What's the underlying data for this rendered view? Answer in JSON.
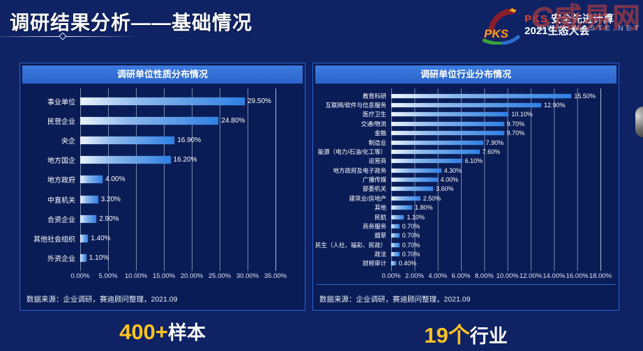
{
  "header": {
    "title": "调研结果分析——基础情况",
    "logo": {
      "brand": "PKS",
      "line1": "安全先进计算",
      "line2": "2021生态大会"
    },
    "watermark": {
      "mark": "C",
      "text": "威易网",
      "subtext": "WWW.WESTE.NET"
    }
  },
  "chart_data": [
    {
      "type": "bar",
      "orientation": "horizontal",
      "title": "调研单位性质分布情况",
      "categories": [
        "事业单位",
        "民营企业",
        "央企",
        "地方国企",
        "地方政府",
        "中直机关",
        "合资企业",
        "其他社会组织",
        "外资企业"
      ],
      "values": [
        29.5,
        24.8,
        16.9,
        16.2,
        4.0,
        3.2,
        2.9,
        1.4,
        1.1
      ],
      "value_labels": [
        "29.50%",
        "24.80%",
        "16.90%",
        "16.20%",
        "4.00%",
        "3.20%",
        "2.90%",
        "1.40%",
        "1.10%"
      ],
      "xlim": [
        0,
        35
      ],
      "xticks": [
        "0.00%",
        "5.00%",
        "10.00%",
        "15.00%",
        "20.00%",
        "25.00%",
        "30.00%",
        "35.00%"
      ],
      "xlabel": "",
      "ylabel": "",
      "grid": "vertical",
      "legend": "none",
      "source": "数据来源：企业调研，赛迪顾问整理，2021.09"
    },
    {
      "type": "bar",
      "orientation": "horizontal",
      "title": "调研单位行业分布情况",
      "categories": [
        "教育科研",
        "互联网/软件与信息服务",
        "医疗卫生",
        "交通/物流",
        "金融",
        "制造业",
        "能源（电力/石油/化工等）",
        "运营商",
        "地方政府及电子政务",
        "广播传媒",
        "部委机关",
        "建筑业/房地产",
        "其他",
        "民航",
        "商务服务",
        "烟草",
        "民生（人社、福彩、民政）",
        "政法",
        "财税审计"
      ],
      "values": [
        15.5,
        12.9,
        10.1,
        9.7,
        9.7,
        7.9,
        7.6,
        6.1,
        4.3,
        4.0,
        3.6,
        2.5,
        1.8,
        1.1,
        0.7,
        0.7,
        0.7,
        0.7,
        0.4
      ],
      "value_labels": [
        "15.50%",
        "12.90%",
        "10.10%",
        "9.70%",
        "9.70%",
        "7.90%",
        "7.60%",
        "6.10%",
        "4.30%",
        "4.00%",
        "3.60%",
        "2.50%",
        "1.80%",
        "1.10%",
        "0.70%",
        "0.70%",
        "0.70%",
        "0.70%",
        "0.40%"
      ],
      "xlim": [
        0,
        18
      ],
      "xticks": [
        "0.00%",
        "2.00%",
        "4.00%",
        "6.00%",
        "8.00%",
        "10.00%",
        "12.00%",
        "14.00%",
        "16.00%",
        "18.00%"
      ],
      "xlabel": "",
      "ylabel": "",
      "grid": "vertical",
      "legend": "none",
      "source": "数据来源：企业调研，赛迪顾问整理，2021.09"
    }
  ],
  "summary": {
    "samples_number": "400+",
    "samples_label": "样本",
    "industries_number": "19个",
    "industries_label": "行业"
  },
  "colors": {
    "background": "#0e2264",
    "panel_background": "#0a1c55",
    "panel_border": "#2a66d4",
    "header_bar": "#2f6fd4",
    "bar_gradient_start": "#ecf4fd",
    "bar_gradient_end": "#2e80e4",
    "accent_gold": "#ffc222",
    "watermark_red": "#922630"
  }
}
